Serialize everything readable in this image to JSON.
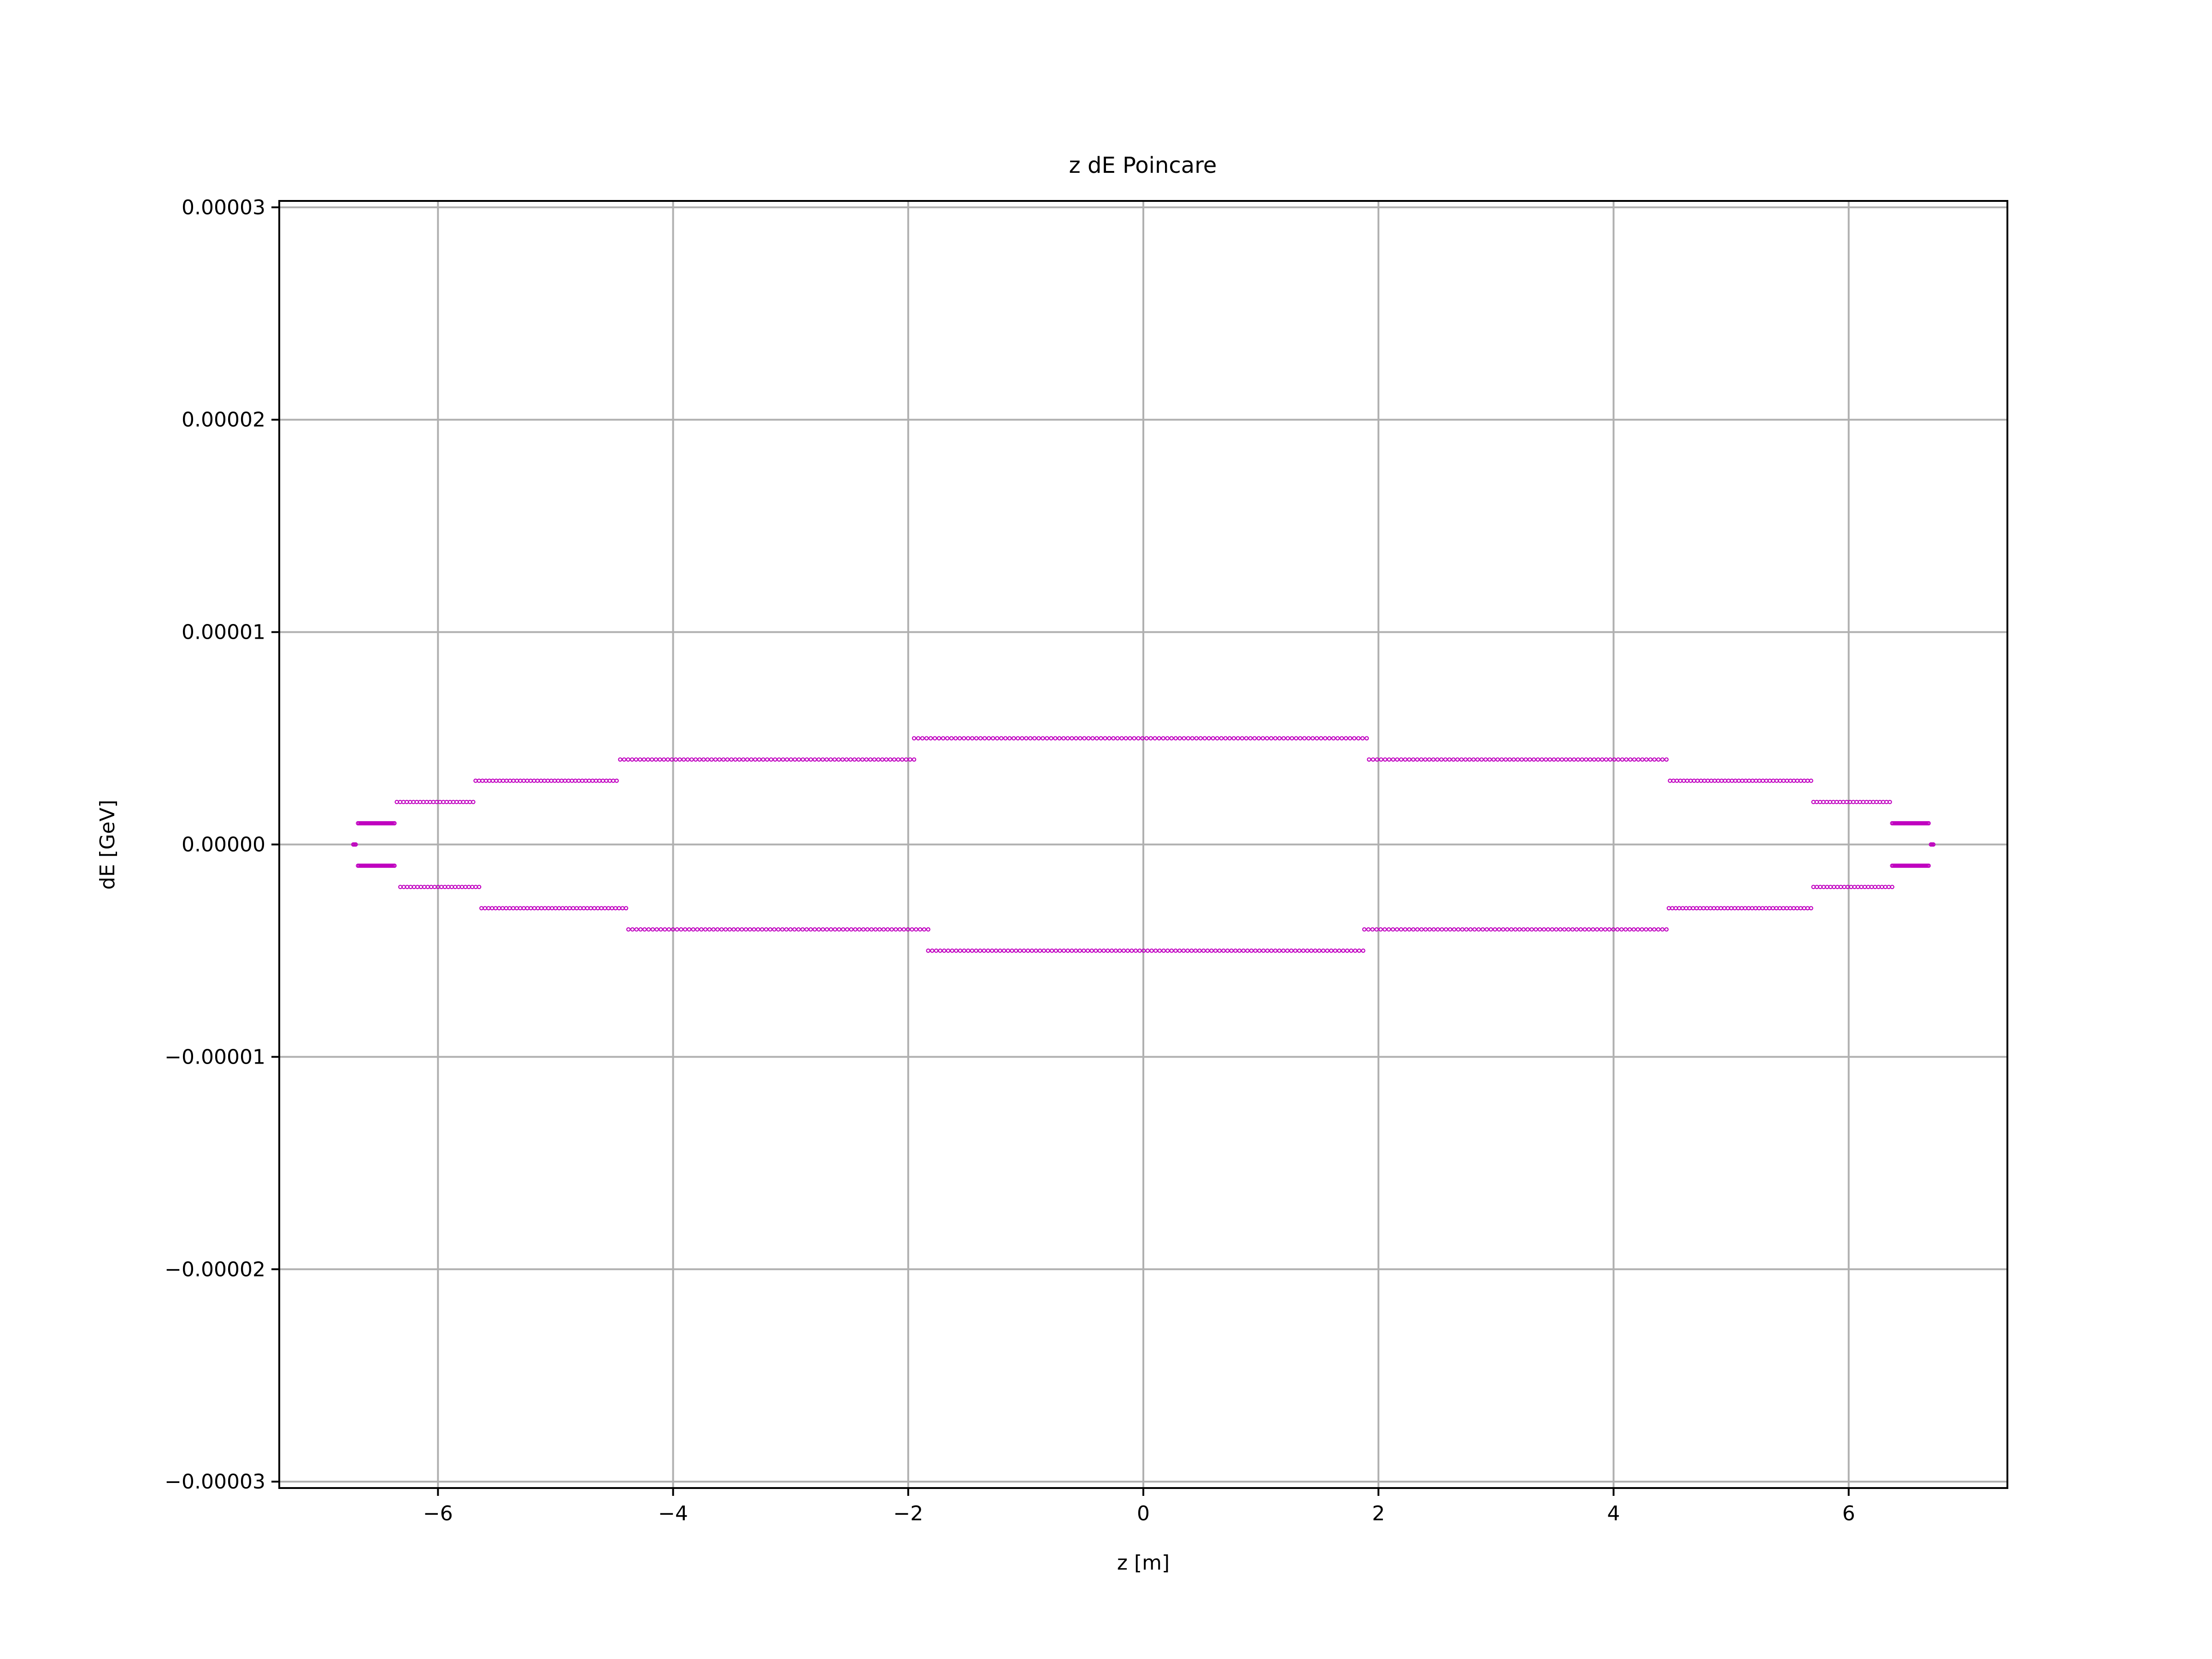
{
  "chart_data": {
    "type": "scatter",
    "title": "z dE Poincare",
    "xlabel": "z [m]",
    "ylabel": "dE [GeV]",
    "xlim": [
      -7.35,
      7.35
    ],
    "ylim": [
      -3.03e-05,
      3.03e-05
    ],
    "xticks": [
      -6,
      -4,
      -2,
      0,
      2,
      4,
      6
    ],
    "xtick_labels": [
      "−6",
      "−4",
      "−2",
      "0",
      "2",
      "4",
      "6"
    ],
    "yticks": [
      -3e-05,
      -2e-05,
      -1e-05,
      0,
      1e-05,
      2e-05,
      3e-05
    ],
    "ytick_labels": [
      "−0.00003",
      "−0.00002",
      "−0.00001",
      "0.00000",
      "0.00001",
      "0.00002",
      "0.00003"
    ],
    "grid": true,
    "legend": "none",
    "marker_color": "#c000c0",
    "marker": "hollow-circle",
    "bands": [
      {
        "dE": 5e-06,
        "z_min": -1.95,
        "z_max": 1.9,
        "n": 110
      },
      {
        "dE": 4e-06,
        "z_min": 1.92,
        "z_max": 4.45,
        "n": 75
      },
      {
        "dE": 4e-06,
        "z_min": -4.45,
        "z_max": -1.95,
        "n": 75
      },
      {
        "dE": 3e-06,
        "z_min": 4.48,
        "z_max": 5.68,
        "n": 42
      },
      {
        "dE": 3e-06,
        "z_min": -5.68,
        "z_max": -4.48,
        "n": 42
      },
      {
        "dE": 2e-06,
        "z_min": 5.7,
        "z_max": 6.35,
        "n": 24
      },
      {
        "dE": 2e-06,
        "z_min": -6.35,
        "z_max": -5.7,
        "n": 24
      },
      {
        "dE": 1e-06,
        "z_min": 6.37,
        "z_max": 6.68,
        "n": 30
      },
      {
        "dE": 1e-06,
        "z_min": -6.68,
        "z_max": -6.37,
        "n": 30
      },
      {
        "dE": 0,
        "z_min": 6.7,
        "z_max": 6.72,
        "n": 3
      },
      {
        "dE": 0,
        "z_min": -6.72,
        "z_max": -6.7,
        "n": 3
      },
      {
        "dE": -1e-06,
        "z_min": 6.37,
        "z_max": 6.68,
        "n": 30
      },
      {
        "dE": -1e-06,
        "z_min": -6.68,
        "z_max": -6.37,
        "n": 30
      },
      {
        "dE": -2e-06,
        "z_min": 5.7,
        "z_max": 6.37,
        "n": 24
      },
      {
        "dE": -2e-06,
        "z_min": -6.32,
        "z_max": -5.65,
        "n": 24
      },
      {
        "dE": -3e-06,
        "z_min": 4.47,
        "z_max": 5.68,
        "n": 42
      },
      {
        "dE": -3e-06,
        "z_min": -5.63,
        "z_max": -4.4,
        "n": 42
      },
      {
        "dE": -4e-06,
        "z_min": 1.88,
        "z_max": 4.45,
        "n": 75
      },
      {
        "dE": -4e-06,
        "z_min": -4.38,
        "z_max": -1.83,
        "n": 75
      },
      {
        "dE": -5e-06,
        "z_min": -1.83,
        "z_max": 1.87,
        "n": 110
      }
    ]
  }
}
